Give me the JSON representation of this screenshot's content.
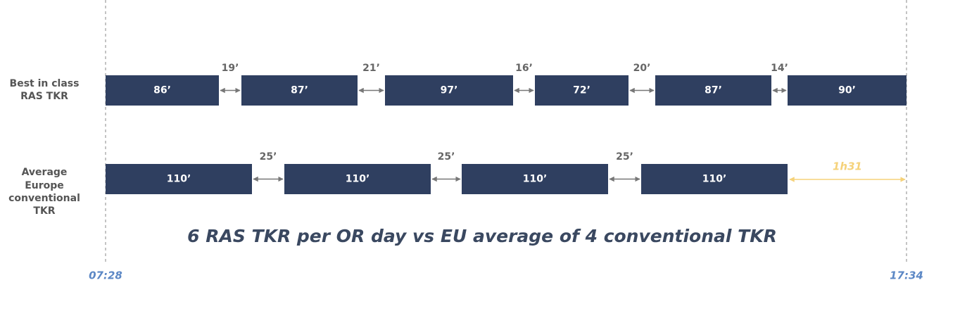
{
  "rows": [
    {
      "label": [
        "Best in class",
        "RAS TKR"
      ],
      "blocks": [
        "86’",
        "87’",
        "97’",
        "72’",
        "87’",
        "90’"
      ],
      "gaps": [
        "19’",
        "21’",
        "16’",
        "20’",
        "14’"
      ]
    },
    {
      "label": [
        "Average",
        "Europe",
        "conventional",
        "TKR"
      ],
      "blocks": [
        "110’",
        "110’",
        "110’",
        "110’"
      ],
      "gaps": [
        "25’",
        "25’",
        "25’"
      ]
    }
  ],
  "remaining": "1h31",
  "caption": "6 RAS TKR per OR day vs EU average of 4 conventional TKR",
  "start_time": "07:28",
  "end_time": "17:34"
}
